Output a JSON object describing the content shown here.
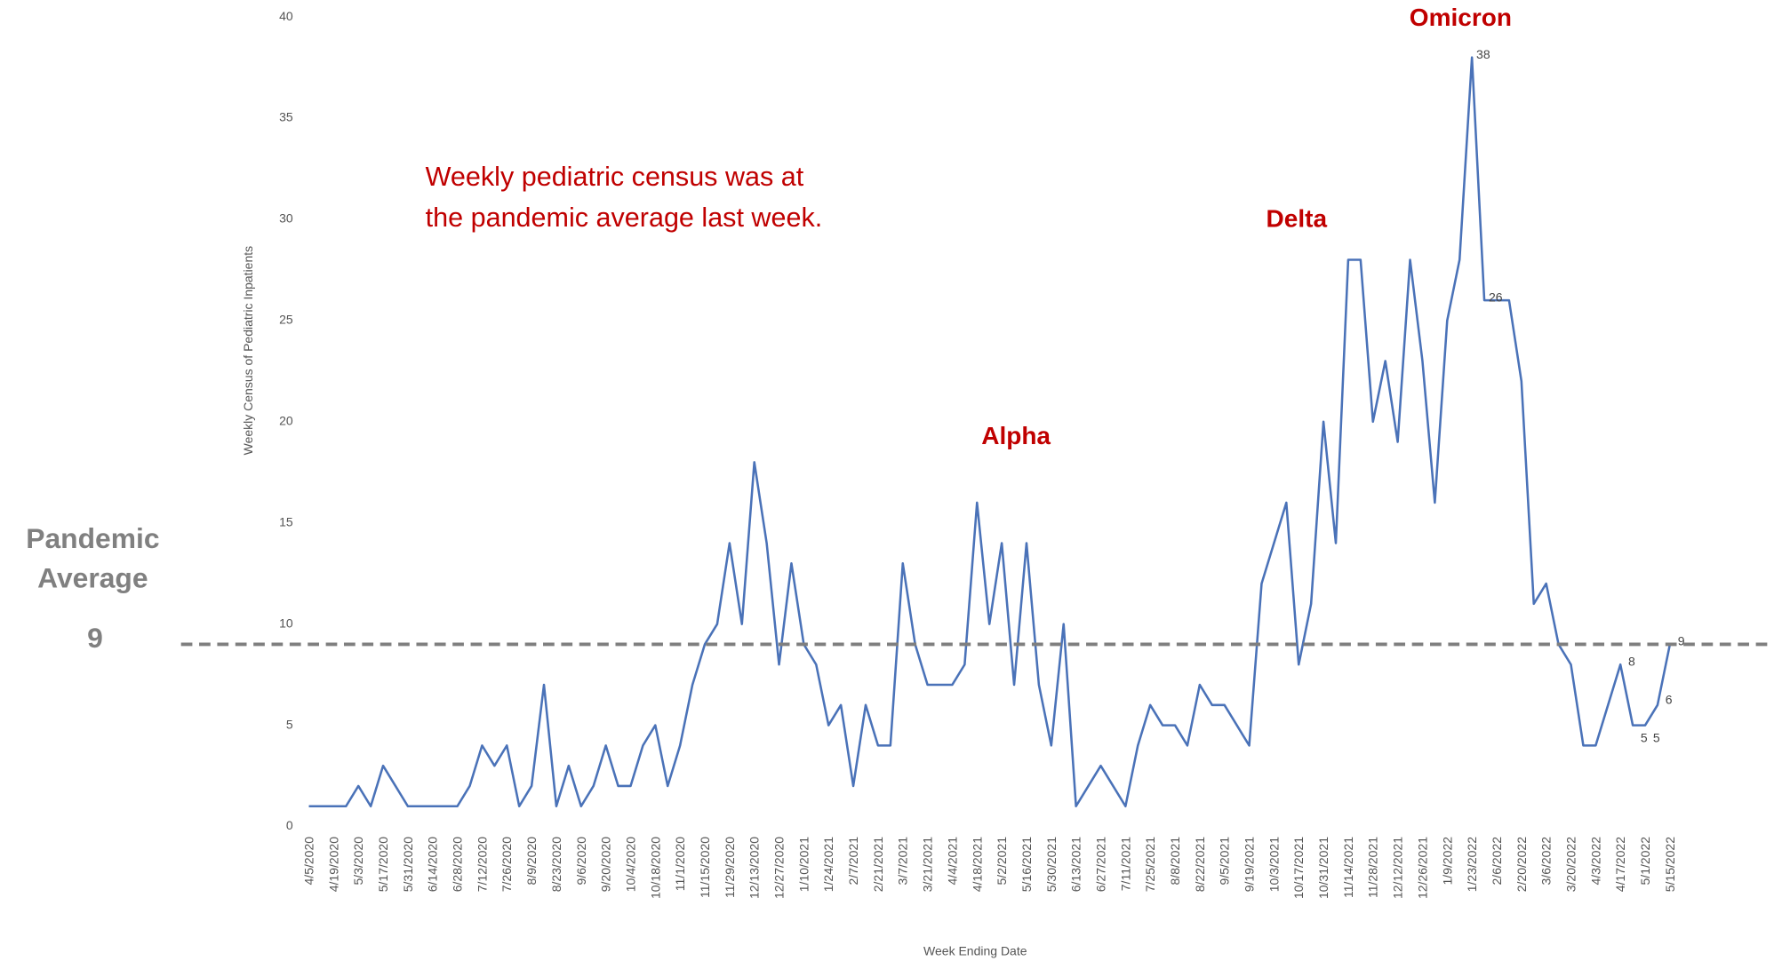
{
  "chart_data": {
    "type": "line",
    "x_label": "Week Ending Date",
    "y_label": "Weekly Census of Pediatric Inpatients",
    "categories": [
      "4/5/2020",
      null,
      "4/19/2020",
      null,
      "5/3/2020",
      null,
      "5/17/2020",
      null,
      "5/31/2020",
      null,
      "6/14/2020",
      null,
      "6/28/2020",
      null,
      "7/12/2020",
      null,
      "7/26/2020",
      null,
      "8/9/2020",
      null,
      "8/23/2020",
      null,
      "9/6/2020",
      null,
      "9/20/2020",
      null,
      "10/4/2020",
      null,
      "10/18/2020",
      null,
      "11/1/2020",
      null,
      "11/15/2020",
      null,
      "11/29/2020",
      null,
      "12/13/2020",
      null,
      "12/27/2020",
      null,
      "1/10/2021",
      null,
      "1/24/2021",
      null,
      "2/7/2021",
      null,
      "2/21/2021",
      null,
      "3/7/2021",
      null,
      "3/21/2021",
      null,
      "4/4/2021",
      null,
      "4/18/2021",
      null,
      "5/2/2021",
      null,
      "5/16/2021",
      null,
      "5/30/2021",
      null,
      "6/13/2021",
      null,
      "6/27/2021",
      null,
      "7/11/2021",
      null,
      "7/25/2021",
      null,
      "8/8/2021",
      null,
      "8/22/2021",
      null,
      "9/5/2021",
      null,
      "9/19/2021",
      null,
      "10/3/2021",
      null,
      "10/17/2021",
      null,
      "10/31/2021",
      null,
      "11/14/2021",
      null,
      "11/28/2021",
      null,
      "12/12/2021",
      null,
      "12/26/2021",
      null,
      "1/9/2022",
      null,
      "1/23/2022",
      null,
      "2/6/2022",
      null,
      "2/20/2022",
      null,
      "3/6/2022",
      null,
      "3/20/2022",
      null,
      "4/3/2022",
      null,
      "4/17/2022",
      null,
      "5/1/2022",
      null,
      "5/15/2022"
    ],
    "series": [
      {
        "name": "Weekly Census of Pediatric Inpatients",
        "color": "#4a72b8",
        "values": [
          1,
          1,
          1,
          1,
          2,
          1,
          3,
          2,
          1,
          1,
          1,
          1,
          1,
          2,
          4,
          3,
          4,
          1,
          2,
          7,
          1,
          3,
          1,
          2,
          4,
          2,
          2,
          4,
          5,
          2,
          4,
          7,
          9,
          10,
          14,
          10,
          18,
          14,
          8,
          13,
          9,
          8,
          5,
          6,
          2,
          6,
          4,
          4,
          13,
          9,
          7,
          7,
          7,
          8,
          16,
          10,
          14,
          7,
          14,
          7,
          4,
          10,
          1,
          2,
          3,
          2,
          1,
          4,
          6,
          5,
          5,
          4,
          7,
          6,
          6,
          5,
          4,
          12,
          14,
          16,
          8,
          11,
          20,
          14,
          28,
          28,
          20,
          23,
          19,
          28,
          23,
          16,
          25,
          28,
          38,
          26,
          26,
          26,
          22,
          11,
          12,
          9,
          8,
          4,
          4,
          6,
          8,
          5,
          5,
          6,
          9
        ],
        "value_labels": [
          null,
          null,
          null,
          null,
          null,
          null,
          null,
          null,
          null,
          null,
          null,
          null,
          null,
          null,
          null,
          null,
          null,
          null,
          null,
          null,
          null,
          null,
          null,
          null,
          null,
          null,
          null,
          null,
          null,
          null,
          null,
          null,
          null,
          null,
          null,
          null,
          null,
          null,
          null,
          null,
          null,
          null,
          null,
          null,
          null,
          null,
          null,
          null,
          null,
          null,
          null,
          null,
          null,
          null,
          null,
          null,
          null,
          null,
          null,
          null,
          null,
          null,
          null,
          null,
          null,
          null,
          null,
          null,
          null,
          null,
          null,
          null,
          null,
          null,
          null,
          null,
          null,
          null,
          null,
          null,
          null,
          null,
          null,
          null,
          null,
          null,
          null,
          null,
          null,
          null,
          null,
          null,
          null,
          null,
          "38",
          "26",
          null,
          null,
          null,
          null,
          null,
          null,
          null,
          null,
          null,
          null,
          "8",
          "5",
          "5",
          "6",
          "9"
        ]
      }
    ],
    "ylim": [
      0,
      40
    ],
    "yticks": [
      0,
      5,
      10,
      15,
      20,
      25,
      30,
      35,
      40
    ],
    "reference_line": {
      "value": 9,
      "label_line1": "Pandemic",
      "label_line2": "Average",
      "value_label": "9"
    },
    "annotations": [
      "Weekly pediatric census was at",
      "the pandemic average last week.",
      "Alpha",
      "Delta",
      "Omicron"
    ]
  }
}
